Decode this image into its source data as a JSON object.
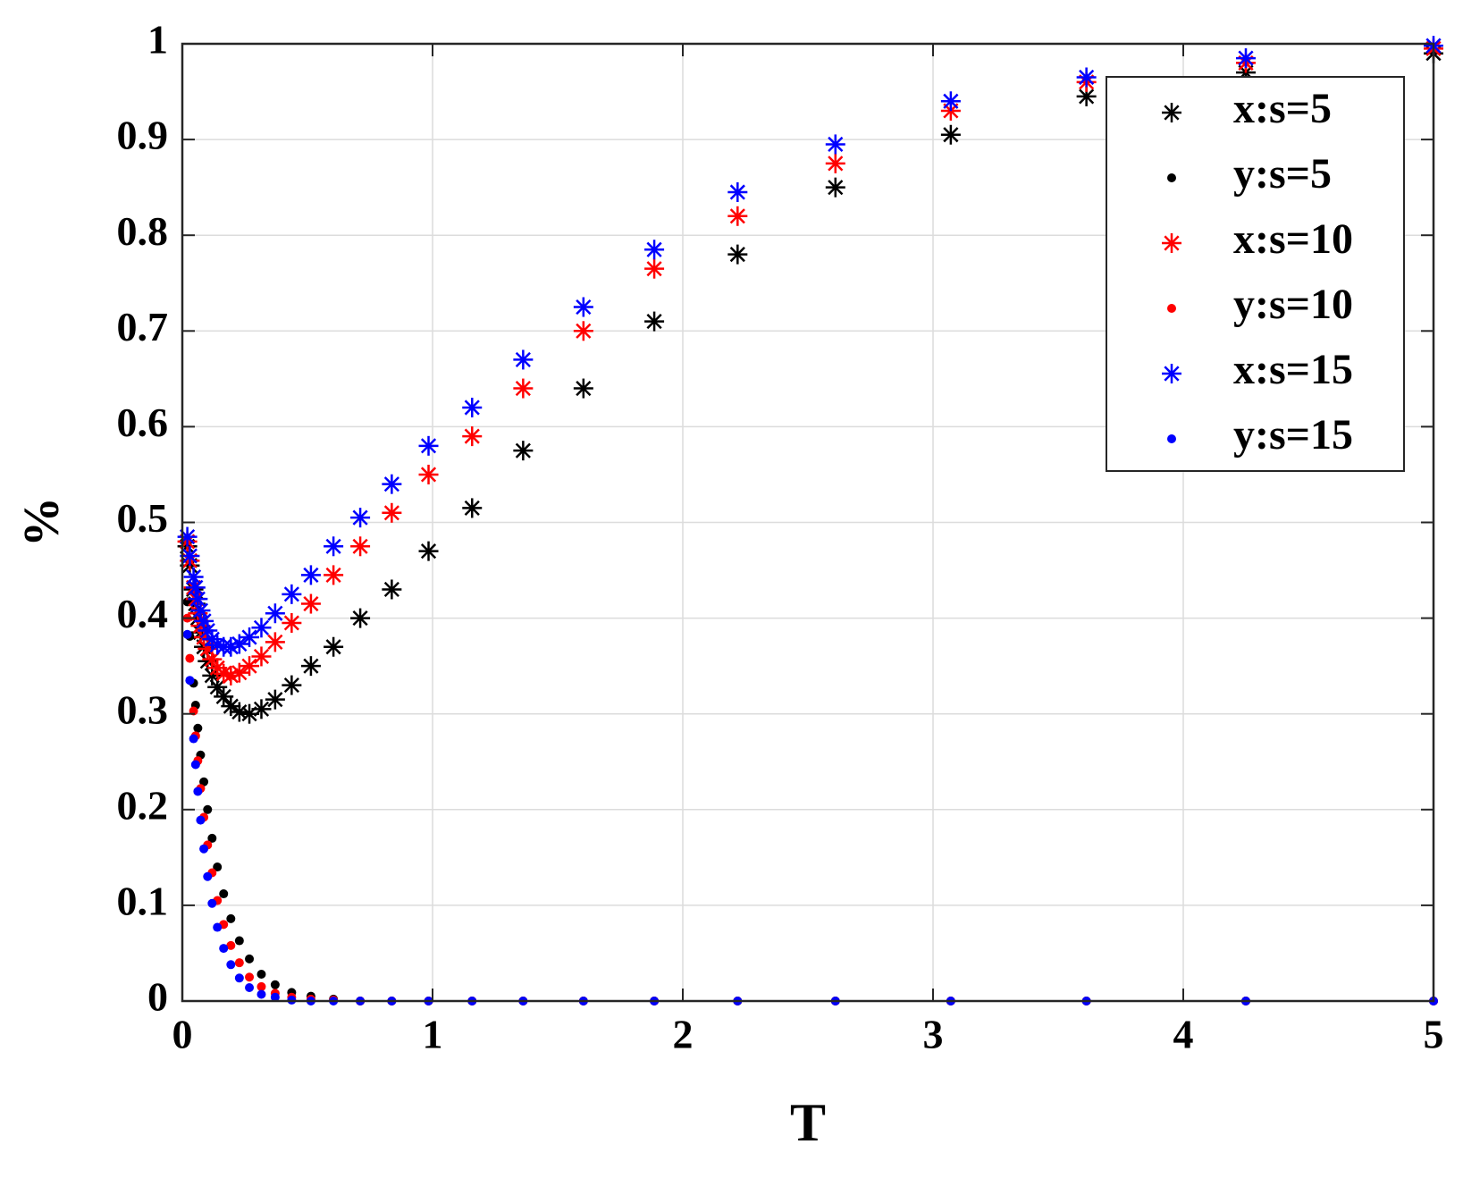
{
  "chart_data": {
    "type": "scatter",
    "xlabel": "T",
    "ylabel": "%",
    "xlim": [
      0,
      5
    ],
    "ylim": [
      0,
      1
    ],
    "xticks": [
      0,
      1,
      2,
      3,
      4,
      5
    ],
    "yticks": [
      0,
      0.1,
      0.2,
      0.3,
      0.4,
      0.5,
      0.6,
      0.7,
      0.8,
      0.9,
      1
    ],
    "grid": true,
    "legend": "upper right",
    "x": [
      5,
      4.25,
      3.613,
      3.071,
      2.61,
      2.219,
      1.886,
      1.603,
      1.362,
      1.158,
      0.984,
      0.837,
      0.711,
      0.604,
      0.514,
      0.437,
      0.371,
      0.316,
      0.268,
      0.228,
      0.194,
      0.165,
      0.14,
      0.119,
      0.101,
      0.086,
      0.073,
      0.062,
      0.053,
      0.045,
      0.03,
      0.02
    ],
    "series": [
      {
        "name": "x:s=5",
        "color": "#000000",
        "marker": "asterisk",
        "values": [
          0.99,
          0.97,
          0.945,
          0.905,
          0.85,
          0.78,
          0.71,
          0.64,
          0.575,
          0.515,
          0.47,
          0.43,
          0.4,
          0.37,
          0.35,
          0.33,
          0.315,
          0.305,
          0.3,
          0.302,
          0.308,
          0.318,
          0.328,
          0.34,
          0.355,
          0.37,
          0.385,
          0.4,
          0.415,
          0.43,
          0.455,
          0.475
        ]
      },
      {
        "name": "y:s=5",
        "color": "#000000",
        "marker": "dot",
        "values": [
          0,
          0,
          0,
          0,
          0,
          0,
          0,
          0,
          0,
          0,
          0,
          0,
          0,
          0.002,
          0.005,
          0.009,
          0.017,
          0.028,
          0.044,
          0.063,
          0.086,
          0.112,
          0.14,
          0.17,
          0.2,
          0.229,
          0.257,
          0.285,
          0.309,
          0.332,
          0.381,
          0.417
        ]
      },
      {
        "name": "x:s=10",
        "color": "#ff0000",
        "marker": "asterisk",
        "values": [
          0.995,
          0.98,
          0.96,
          0.93,
          0.875,
          0.82,
          0.765,
          0.7,
          0.64,
          0.59,
          0.55,
          0.51,
          0.475,
          0.445,
          0.415,
          0.395,
          0.375,
          0.36,
          0.35,
          0.343,
          0.34,
          0.342,
          0.348,
          0.357,
          0.368,
          0.38,
          0.392,
          0.405,
          0.42,
          0.432,
          0.46,
          0.48
        ]
      },
      {
        "name": "y:s=10",
        "color": "#ff0000",
        "marker": "dot",
        "values": [
          0,
          0,
          0,
          0,
          0,
          0,
          0,
          0,
          0,
          0,
          0,
          0,
          0,
          0.001,
          0.002,
          0.004,
          0.008,
          0.015,
          0.025,
          0.04,
          0.058,
          0.08,
          0.105,
          0.134,
          0.163,
          0.192,
          0.222,
          0.251,
          0.277,
          0.303,
          0.358,
          0.4
        ]
      },
      {
        "name": "x:s=15",
        "color": "#0000ff",
        "marker": "asterisk",
        "values": [
          0.998,
          0.985,
          0.965,
          0.94,
          0.895,
          0.845,
          0.785,
          0.725,
          0.67,
          0.62,
          0.58,
          0.54,
          0.505,
          0.475,
          0.445,
          0.425,
          0.405,
          0.39,
          0.38,
          0.373,
          0.37,
          0.37,
          0.372,
          0.378,
          0.387,
          0.397,
          0.408,
          0.42,
          0.432,
          0.443,
          0.465,
          0.485
        ]
      },
      {
        "name": "y:s=15",
        "color": "#0000ff",
        "marker": "dot",
        "values": [
          0,
          0,
          0,
          0,
          0,
          0,
          0,
          0,
          0,
          0,
          0,
          0,
          0,
          0,
          0,
          0.001,
          0.004,
          0.007,
          0.014,
          0.024,
          0.038,
          0.055,
          0.077,
          0.102,
          0.13,
          0.159,
          0.189,
          0.219,
          0.247,
          0.274,
          0.335,
          0.383
        ]
      }
    ]
  }
}
